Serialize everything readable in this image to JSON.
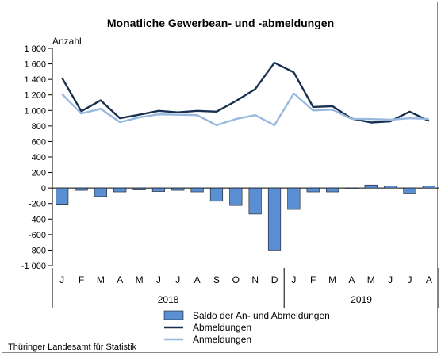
{
  "chart_data": {
    "type": "bar+line",
    "title": "Monatliche Gewerbean- und -abmeldungen",
    "ylabel": "Anzahl",
    "ylim": [
      -1000,
      1800
    ],
    "yticks": [
      1800,
      1600,
      1400,
      1200,
      1000,
      800,
      600,
      400,
      200,
      0,
      -200,
      -400,
      -600,
      -800,
      -1000
    ],
    "ytick_labels": [
      "1 800",
      "1 600",
      "1 400",
      "1 200",
      "1 000",
      "800",
      "600",
      "400",
      "200",
      "0",
      "-200",
      "-400",
      "-600",
      "-800",
      "-1 000"
    ],
    "categories": [
      "J",
      "F",
      "M",
      "A",
      "M",
      "J",
      "J",
      "A",
      "S",
      "O",
      "N",
      "D",
      "J",
      "F",
      "M",
      "A",
      "M",
      "J",
      "J",
      "A"
    ],
    "year_groups": [
      {
        "label": "2018",
        "start": 0,
        "count": 12
      },
      {
        "label": "2019",
        "start": 12,
        "count": 8
      }
    ],
    "legend_position": "bottom",
    "grid": false,
    "series": [
      {
        "name": "Saldo der An- und Abmeldungen",
        "kind": "bar",
        "color": "#5b8fd4",
        "values": [
          -210,
          -30,
          -110,
          -50,
          -25,
          -45,
          -30,
          -50,
          -170,
          -225,
          -335,
          -800,
          -275,
          -50,
          -50,
          -10,
          40,
          25,
          -75,
          25
        ]
      },
      {
        "name": "Abmeldungen",
        "kind": "line",
        "color": "#17304f",
        "values": [
          1420,
          990,
          1130,
          900,
          945,
          995,
          975,
          995,
          985,
          1120,
          1275,
          1615,
          1490,
          1045,
          1055,
          895,
          845,
          860,
          985,
          865
        ]
      },
      {
        "name": "Anmeldungen",
        "kind": "line",
        "color": "#98b8e0",
        "values": [
          1210,
          960,
          1020,
          850,
          910,
          950,
          945,
          940,
          810,
          890,
          940,
          810,
          1220,
          1000,
          1010,
          890,
          890,
          880,
          900,
          890
        ]
      }
    ]
  },
  "footer": {
    "source": "Thüringer Landesamt für Statistik"
  }
}
